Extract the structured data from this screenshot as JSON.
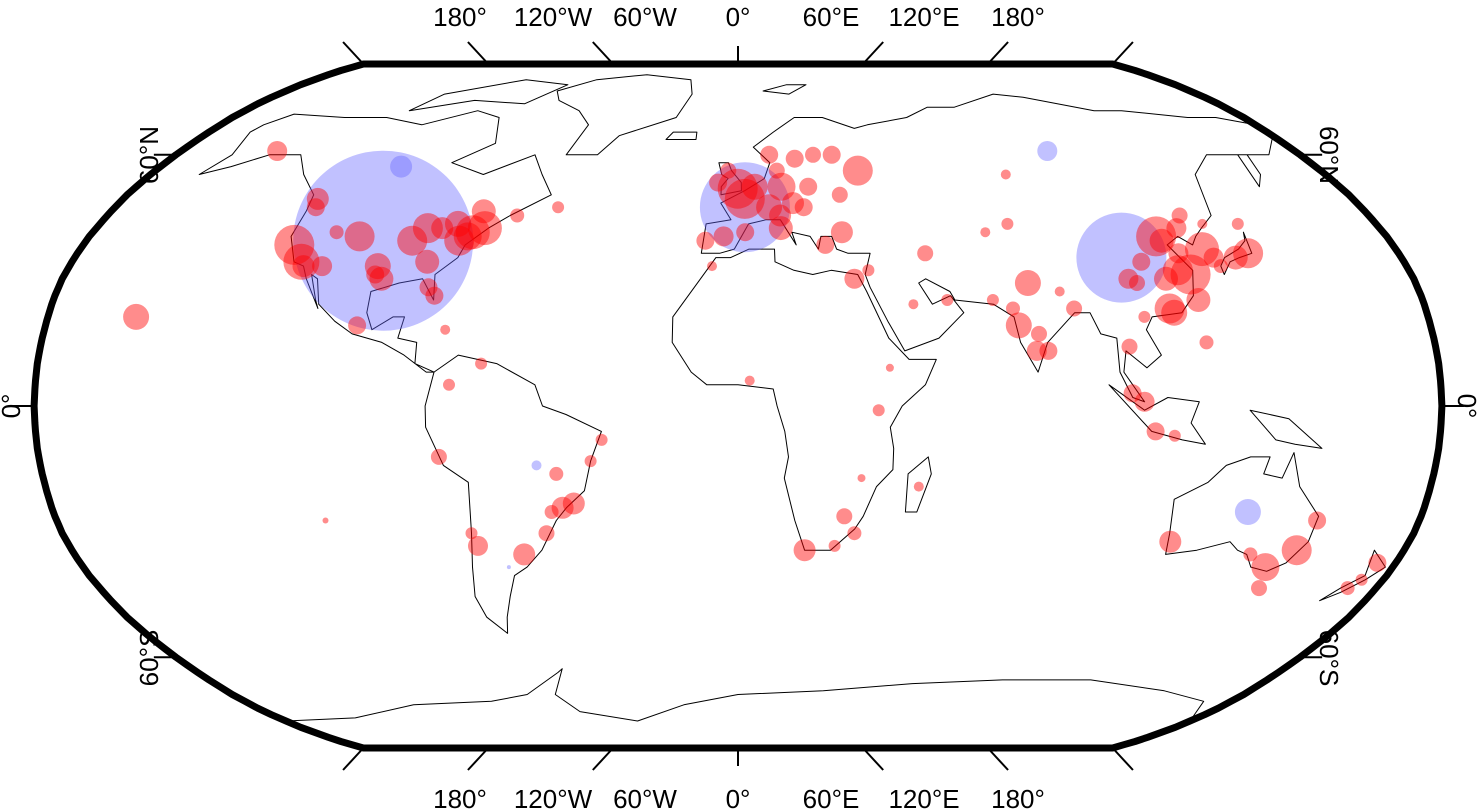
{
  "map": {
    "projection": "robinson",
    "grid": false,
    "colors": {
      "frame": "#000000",
      "coastline": "#000000",
      "red_points": "#ff0000",
      "blue_points": "#6464ff",
      "background": "#ffffff"
    },
    "axis_labels": {
      "top": [
        "180°",
        "120°W",
        "60°W",
        "0°",
        "60°E",
        "120°E",
        "180°"
      ],
      "bottom": [
        "180°",
        "120°W",
        "60°W",
        "0°",
        "60°E",
        "120°E",
        "180°"
      ],
      "left": [
        "60°N",
        "0°",
        "60°S"
      ],
      "right": [
        "60°N",
        "0°",
        "60°S"
      ]
    }
  },
  "chart_data": {
    "type": "scatter",
    "title": "",
    "xlabel": "",
    "ylabel": "",
    "xlim": [
      -180,
      180
    ],
    "ylim": [
      -90,
      90
    ],
    "x_ticks": [
      -180,
      -120,
      -60,
      0,
      60,
      120,
      180
    ],
    "y_ticks": [
      60,
      0,
      -60
    ],
    "series": [
      {
        "color": "#ff0000",
        "points": [
          {
            "lon": -149,
            "lat": 61,
            "size": 20
          },
          {
            "lon": -157,
            "lat": 21,
            "size": 26
          },
          {
            "lon": -123,
            "lat": 49,
            "size": 22
          },
          {
            "lon": -122,
            "lat": 47,
            "size": 18
          },
          {
            "lon": -122,
            "lat": 38,
            "size": 40
          },
          {
            "lon": -118,
            "lat": 34,
            "size": 36
          },
          {
            "lon": -117,
            "lat": 33,
            "size": 22
          },
          {
            "lon": -112,
            "lat": 33,
            "size": 20
          },
          {
            "lon": -112,
            "lat": 41,
            "size": 14
          },
          {
            "lon": -105,
            "lat": 40,
            "size": 30
          },
          {
            "lon": -97,
            "lat": 31,
            "size": 18
          },
          {
            "lon": -97,
            "lat": 33,
            "size": 26
          },
          {
            "lon": -95,
            "lat": 30,
            "size": 24
          },
          {
            "lon": -90,
            "lat": 39,
            "size": 30
          },
          {
            "lon": -87,
            "lat": 42,
            "size": 30
          },
          {
            "lon": -84,
            "lat": 34,
            "size": 24
          },
          {
            "lon": -83,
            "lat": 42,
            "size": 22
          },
          {
            "lon": -82,
            "lat": 28,
            "size": 18
          },
          {
            "lon": -80,
            "lat": 26,
            "size": 18
          },
          {
            "lon": -79,
            "lat": 43,
            "size": 26
          },
          {
            "lon": -77,
            "lat": 39,
            "size": 30
          },
          {
            "lon": -75,
            "lat": 40,
            "size": 28
          },
          {
            "lon": -74,
            "lat": 41,
            "size": 34
          },
          {
            "lon": -73,
            "lat": 46,
            "size": 24
          },
          {
            "lon": -71,
            "lat": 42,
            "size": 34
          },
          {
            "lon": -63,
            "lat": 45,
            "size": 14
          },
          {
            "lon": -52,
            "lat": 47,
            "size": 12
          },
          {
            "lon": -99,
            "lat": 19,
            "size": 18
          },
          {
            "lon": -76,
            "lat": 18,
            "size": 10
          },
          {
            "lon": -66,
            "lat": 10,
            "size": 12
          },
          {
            "lon": -74,
            "lat": 5,
            "size": 12
          },
          {
            "lon": -77,
            "lat": -12,
            "size": 16
          },
          {
            "lon": -47,
            "lat": -16,
            "size": 14
          },
          {
            "lon": -43,
            "lat": -23,
            "size": 22
          },
          {
            "lon": -46,
            "lat": -24,
            "size": 22
          },
          {
            "lon": -49,
            "lat": -25,
            "size": 14
          },
          {
            "lon": -51,
            "lat": -30,
            "size": 16
          },
          {
            "lon": -58,
            "lat": -35,
            "size": 22
          },
          {
            "lon": -70,
            "lat": -33,
            "size": 20
          },
          {
            "lon": -71,
            "lat": -30,
            "size": 12
          },
          {
            "lon": -35,
            "lat": -8,
            "size": 12
          },
          {
            "lon": -38,
            "lat": -13,
            "size": 12
          },
          {
            "lon": -109,
            "lat": -27,
            "size": 6
          },
          {
            "lon": -9,
            "lat": 39,
            "size": 18
          },
          {
            "lon": -4,
            "lat": 40,
            "size": 20
          },
          {
            "lon": 2,
            "lat": 41,
            "size": 18
          },
          {
            "lon": 2,
            "lat": 49,
            "size": 40
          },
          {
            "lon": -0.1,
            "lat": 51.5,
            "size": 40
          },
          {
            "lon": -6,
            "lat": 53,
            "size": 18
          },
          {
            "lon": -3,
            "lat": 56,
            "size": 16
          },
          {
            "lon": 5,
            "lat": 52,
            "size": 26
          },
          {
            "lon": 13,
            "lat": 52,
            "size": 28
          },
          {
            "lon": 9,
            "lat": 47,
            "size": 26
          },
          {
            "lon": 12,
            "lat": 45,
            "size": 22
          },
          {
            "lon": 12,
            "lat": 42,
            "size": 24
          },
          {
            "lon": 16,
            "lat": 48,
            "size": 22
          },
          {
            "lon": 19,
            "lat": 47,
            "size": 18
          },
          {
            "lon": 21,
            "lat": 52,
            "size": 18
          },
          {
            "lon": 24,
            "lat": 38,
            "size": 18
          },
          {
            "lon": 29,
            "lat": 41,
            "size": 22
          },
          {
            "lon": 24,
            "lat": 60,
            "size": 16
          },
          {
            "lon": 18,
            "lat": 59,
            "size": 18
          },
          {
            "lon": 10,
            "lat": 60,
            "size": 18
          },
          {
            "lon": 12,
            "lat": 56,
            "size": 16
          },
          {
            "lon": 37,
            "lat": 56,
            "size": 30
          },
          {
            "lon": 30,
            "lat": 60,
            "size": 18
          },
          {
            "lon": 30,
            "lat": 50,
            "size": 16
          },
          {
            "lon": 31,
            "lat": 30,
            "size": 20
          },
          {
            "lon": 35,
            "lat": 32,
            "size": 12
          },
          {
            "lon": 51,
            "lat": 36,
            "size": 16
          },
          {
            "lon": 55,
            "lat": 25,
            "size": 12
          },
          {
            "lon": 46,
            "lat": 24,
            "size": 10
          },
          {
            "lon": -7,
            "lat": 33,
            "size": 10
          },
          {
            "lon": 3,
            "lat": 6,
            "size": 10
          },
          {
            "lon": 36,
            "lat": -1,
            "size": 12
          },
          {
            "lon": 28,
            "lat": -26,
            "size": 16
          },
          {
            "lon": 31,
            "lat": -30,
            "size": 14
          },
          {
            "lon": 18,
            "lat": -34,
            "size": 22
          },
          {
            "lon": 26,
            "lat": -33,
            "size": 12
          },
          {
            "lon": 47,
            "lat": -19,
            "size": 10
          },
          {
            "lon": 32,
            "lat": -17,
            "size": 8
          },
          {
            "lon": 39,
            "lat": 9,
            "size": 8
          },
          {
            "lon": 73,
            "lat": 19,
            "size": 26
          },
          {
            "lon": 77,
            "lat": 29,
            "size": 26
          },
          {
            "lon": 72,
            "lat": 23,
            "size": 14
          },
          {
            "lon": 78,
            "lat": 17,
            "size": 16
          },
          {
            "lon": 77,
            "lat": 13,
            "size": 20
          },
          {
            "lon": 80,
            "lat": 13,
            "size": 18
          },
          {
            "lon": 88,
            "lat": 23,
            "size": 16
          },
          {
            "lon": 67,
            "lat": 25,
            "size": 12
          },
          {
            "lon": 85,
            "lat": 27,
            "size": 10
          },
          {
            "lon": 69,
            "lat": 41,
            "size": 10
          },
          {
            "lon": 82,
            "lat": 55,
            "size": 10
          },
          {
            "lon": 76,
            "lat": 43,
            "size": 12
          },
          {
            "lon": 101,
            "lat": 14,
            "size": 16
          },
          {
            "lon": 101,
            "lat": 3,
            "size": 18
          },
          {
            "lon": 104,
            "lat": 1,
            "size": 20
          },
          {
            "lon": 107,
            "lat": -6,
            "size": 18
          },
          {
            "lon": 112,
            "lat": -7,
            "size": 12
          },
          {
            "lon": 121,
            "lat": 15,
            "size": 14
          },
          {
            "lon": 106,
            "lat": 21,
            "size": 12
          },
          {
            "lon": 104,
            "lat": 30,
            "size": 20
          },
          {
            "lon": 106,
            "lat": 29,
            "size": 16
          },
          {
            "lon": 109,
            "lat": 34,
            "size": 18
          },
          {
            "lon": 114,
            "lat": 30,
            "size": 24
          },
          {
            "lon": 113,
            "lat": 23,
            "size": 30
          },
          {
            "lon": 114,
            "lat": 22,
            "size": 26
          },
          {
            "lon": 121,
            "lat": 31,
            "size": 40
          },
          {
            "lon": 118,
            "lat": 32,
            "size": 30
          },
          {
            "lon": 116,
            "lat": 40,
            "size": 40
          },
          {
            "lon": 117,
            "lat": 39,
            "size": 24
          },
          {
            "lon": 120,
            "lat": 36,
            "size": 20
          },
          {
            "lon": 123,
            "lat": 42,
            "size": 20
          },
          {
            "lon": 126,
            "lat": 45,
            "size": 16
          },
          {
            "lon": 127,
            "lat": 37,
            "size": 34
          },
          {
            "lon": 129,
            "lat": 35,
            "size": 20
          },
          {
            "lon": 121,
            "lat": 25,
            "size": 24
          },
          {
            "lon": 135,
            "lat": 35,
            "size": 24
          },
          {
            "lon": 139,
            "lat": 36,
            "size": 30
          },
          {
            "lon": 141,
            "lat": 43,
            "size": 12
          },
          {
            "lon": 130,
            "lat": 33,
            "size": 14
          },
          {
            "lon": 131,
            "lat": 43,
            "size": 10
          },
          {
            "lon": 151,
            "lat": -34,
            "size": 30
          },
          {
            "lon": 145,
            "lat": -38,
            "size": 28
          },
          {
            "lon": 153,
            "lat": -27,
            "size": 18
          },
          {
            "lon": 139,
            "lat": -35,
            "size": 14
          },
          {
            "lon": 116,
            "lat": -32,
            "size": 22
          },
          {
            "lon": 147,
            "lat": -43,
            "size": 16
          },
          {
            "lon": 175,
            "lat": -37,
            "size": 18
          },
          {
            "lon": 172,
            "lat": -43,
            "size": 14
          },
          {
            "lon": 174,
            "lat": -41,
            "size": 12
          }
        ]
      },
      {
        "color": "#6464ff",
        "points": [
          {
            "lon": -98,
            "lat": 39,
            "size": 180
          },
          {
            "lon": 2,
            "lat": 47,
            "size": 90
          },
          {
            "lon": 104,
            "lat": 35,
            "size": 90
          },
          {
            "lon": 134,
            "lat": -25,
            "size": 26
          },
          {
            "lon": -52,
            "lat": -14,
            "size": 10
          },
          {
            "lon": 100,
            "lat": 61,
            "size": 20
          },
          {
            "lon": -105,
            "lat": 57,
            "size": 22
          },
          {
            "lon": -63,
            "lat": -38,
            "size": 4
          }
        ]
      }
    ]
  }
}
